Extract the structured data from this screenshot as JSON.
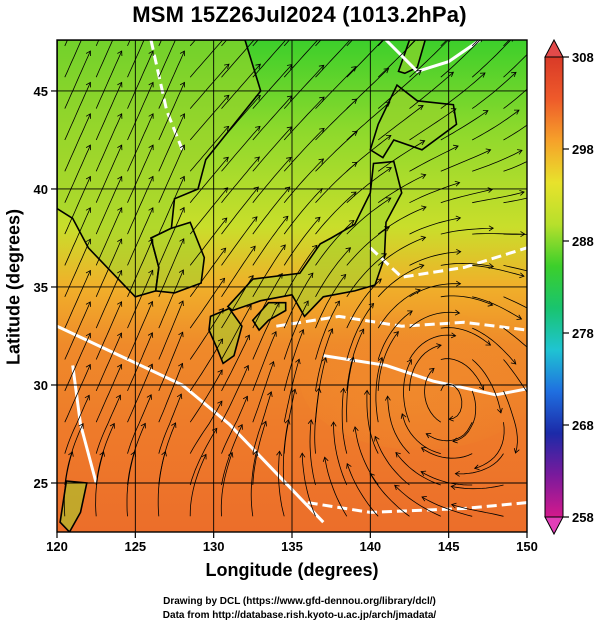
{
  "title": "MSM 15Z26Jul2024 (1013.2hPa)",
  "xlabel": "Longitude (degrees)",
  "ylabel": "Latitude  (degrees)",
  "credits": {
    "line1": "Drawing by DCL (https://www.gfd-dennou.org/library/dcl/)",
    "line2": "Data from http://database.rish.kyoto-u.ac.jp/arch/jmadata/"
  },
  "chart_data": {
    "type": "heatmap",
    "variable": "temperature with streamlines",
    "xlim": [
      120,
      150
    ],
    "ylim": [
      22.5,
      47.6
    ],
    "x_ticks": [
      "120",
      "125",
      "130",
      "135",
      "140",
      "145",
      "150"
    ],
    "y_ticks": [
      "25",
      "30",
      "35",
      "40",
      "45"
    ],
    "grid": true,
    "colorbar": {
      "min": 258,
      "max": 308,
      "tick_labels": [
        "308",
        "298",
        "288",
        "278",
        "268",
        "258"
      ],
      "colors": [
        "#d4198c",
        "#7a1a9c",
        "#1c2aa8",
        "#1f6fe0",
        "#1fc4d2",
        "#19c46e",
        "#3ccf2b",
        "#b7e02c",
        "#e8e22c",
        "#f6a12a",
        "#ee5a2a",
        "#d93a28"
      ]
    }
  }
}
